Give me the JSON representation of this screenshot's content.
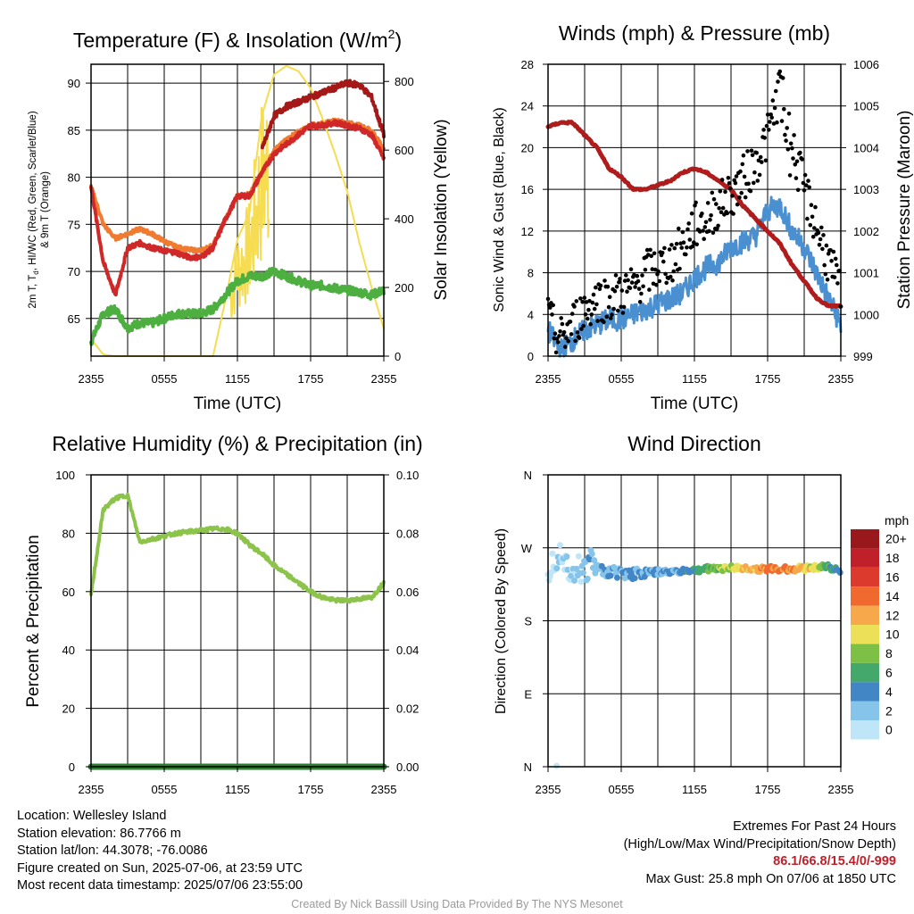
{
  "colors": {
    "red": "#d02828",
    "orange": "#f07a30",
    "green": "#4caf40",
    "maroon": "#b01c1c",
    "yellow": "#f5dc50",
    "blue": "#4a90d0",
    "black": "#000000",
    "rh": "#8cc34a",
    "precip": "#2e7d32",
    "grid": "#000000"
  },
  "x_ticks": [
    "2355",
    "0555",
    "1155",
    "1755",
    "2355"
  ],
  "time_label": "Time (UTC)",
  "charts": {
    "temp": {
      "title_main": "Temperature (F) & Insolation (W/m",
      "title_sup": "2",
      "title_end": ")",
      "ylabel_left_line1": "2m T, T",
      "ylabel_left_sub": "d",
      "ylabel_left_rest": ", HI/WC (Red, Green, Scarlet/Blue)",
      "ylabel_left_line2": "& 9m T (Orange)",
      "ylabel_right": "Solar Insolation (Yellow)",
      "yticks_left": [
        "65",
        "70",
        "75",
        "80",
        "85",
        "90"
      ],
      "yticks_right": [
        "0",
        "200",
        "400",
        "600",
        "800"
      ]
    },
    "wind": {
      "title": "Winds (mph) & Pressure (mb)",
      "ylabel_left": "Sonic Wind & Gust (Blue, Black)",
      "ylabel_right": "Station Pressure (Maroon)",
      "yticks_left": [
        "0",
        "4",
        "8",
        "12",
        "16",
        "20",
        "24",
        "28"
      ],
      "yticks_right": [
        "999",
        "1000",
        "1001",
        "1002",
        "1003",
        "1004",
        "1005",
        "1006"
      ]
    },
    "rh": {
      "title": "Relative Humidity (%) & Precipitation (in)",
      "ylabel_left": "Percent & Precipitation",
      "yticks_left": [
        "0",
        "20",
        "40",
        "60",
        "80",
        "100"
      ],
      "yticks_right": [
        "0.00",
        "0.02",
        "0.04",
        "0.06",
        "0.08",
        "0.10"
      ]
    },
    "dir": {
      "title": "Wind Direction",
      "ylabel_left": "Direction (Colored By Speed)",
      "yticks_left": [
        "N",
        "E",
        "S",
        "W",
        "N"
      ],
      "colorbar_title": "mph",
      "colorbar_labels": [
        "0",
        "2",
        "4",
        "6",
        "8",
        "10",
        "12",
        "14",
        "16",
        "18",
        "20+"
      ],
      "colorbar_colors": [
        "#bfe6f8",
        "#86c4ea",
        "#4286c6",
        "#44a86a",
        "#7cc046",
        "#ece058",
        "#f6a84a",
        "#f06a30",
        "#dc3a2c",
        "#c0202a",
        "#98181c"
      ]
    }
  },
  "chart_data": [
    {
      "type": "line",
      "title": "Temperature (F) & Insolation (W/m2)",
      "xlabel": "Time (UTC)",
      "ylabel": "2m T, Td, HI/WC (Red, Green, Scarlet/Blue) & 9m T (Orange)",
      "y2label": "Solar Insolation (Yellow)",
      "x_hours": [
        0,
        1,
        2,
        3,
        4,
        5,
        6,
        7,
        8,
        9,
        10,
        11,
        12,
        13,
        14,
        15,
        16,
        17,
        18,
        19,
        20,
        21,
        22,
        23,
        24
      ],
      "ylim": [
        61,
        92
      ],
      "y2lim": [
        0,
        850
      ],
      "series": [
        {
          "name": "2m T (Red)",
          "axis": "left",
          "color": "#d02828",
          "values": [
            79,
            71,
            67.5,
            72.5,
            73,
            72.5,
            72.2,
            72,
            71.5,
            71.5,
            72.5,
            75.5,
            78,
            78,
            80.5,
            82.5,
            83.5,
            84.5,
            85.5,
            85.5,
            85.8,
            85.5,
            85.2,
            84.5,
            82
          ]
        },
        {
          "name": "9m T (Orange)",
          "axis": "left",
          "color": "#f07a30",
          "values": [
            79,
            75,
            73.5,
            74,
            74.5,
            74,
            73.2,
            72.6,
            72.3,
            72.2,
            72.8,
            75.5,
            78,
            78.2,
            80.5,
            82.8,
            84,
            84.8,
            85.5,
            85.7,
            86,
            85.8,
            85.5,
            85,
            83
          ]
        },
        {
          "name": "Td (Green)",
          "axis": "left",
          "color": "#4caf40",
          "values": [
            62.5,
            65.5,
            66,
            64,
            64.5,
            64.5,
            65,
            65.5,
            65.5,
            65.5,
            66,
            67.5,
            69,
            69.5,
            69.5,
            70,
            69.5,
            69,
            68.5,
            68.5,
            68.2,
            68,
            67.8,
            67.5,
            68
          ]
        },
        {
          "name": "HI/WC (Scarlet/Blue)",
          "axis": "left",
          "color": "#a41818",
          "values": [
            null,
            null,
            null,
            null,
            null,
            null,
            null,
            null,
            null,
            null,
            null,
            null,
            null,
            null,
            83,
            86.5,
            87.5,
            88,
            88.5,
            89,
            89.5,
            90,
            89.8,
            88.5,
            84.5
          ]
        },
        {
          "name": "Solar Insolation (Yellow)",
          "axis": "right",
          "color": "#f5dc50",
          "values": [
            50,
            5,
            0,
            0,
            0,
            0,
            0,
            0,
            0,
            0,
            0,
            160,
            340,
            420,
            700,
            820,
            845,
            830,
            780,
            690,
            590,
            480,
            330,
            200,
            80
          ]
        }
      ]
    },
    {
      "type": "line",
      "title": "Winds (mph) & Pressure (mb)",
      "xlabel": "Time (UTC)",
      "ylabel": "Sonic Wind & Gust (Blue, Black)",
      "y2label": "Station Pressure (Maroon)",
      "x_hours": [
        0,
        1,
        2,
        3,
        4,
        5,
        6,
        7,
        8,
        9,
        10,
        11,
        12,
        13,
        14,
        15,
        16,
        17,
        18,
        19,
        20,
        21,
        22,
        23,
        24
      ],
      "ylim": [
        0,
        28
      ],
      "y2lim": [
        999,
        1006
      ],
      "series": [
        {
          "name": "Sonic Wind (Blue)",
          "axis": "left",
          "color": "#4a90d0",
          "values": [
            2.5,
            0.5,
            1.5,
            2.5,
            3,
            3.5,
            3.5,
            4,
            4.5,
            5,
            5.5,
            6,
            7.5,
            8.5,
            9,
            10.5,
            11,
            11.5,
            14,
            14.5,
            12,
            10.5,
            8,
            5.5,
            3
          ]
        },
        {
          "name": "Gust (Black)",
          "axis": "scatter",
          "color": "#000000",
          "values": [
            3.5,
            1.5,
            3,
            4.5,
            5.5,
            5.5,
            6,
            6.5,
            8,
            8.5,
            9,
            10.5,
            12.5,
            13,
            14.5,
            15.5,
            17,
            18.5,
            21,
            25.8,
            20,
            16,
            12.5,
            9,
            6
          ]
        },
        {
          "name": "Station Pressure (Maroon)",
          "axis": "right",
          "color": "#b01c1c",
          "values": [
            1004.5,
            1004.6,
            1004.6,
            1004.3,
            1004,
            1003.5,
            1003.3,
            1003,
            1003,
            1003.1,
            1003.2,
            1003.4,
            1003.5,
            1003.4,
            1003.2,
            1003,
            1002.6,
            1002.3,
            1002,
            1001.7,
            1001.2,
            1000.8,
            1000.4,
            1000.2,
            1000.2
          ]
        }
      ]
    },
    {
      "type": "line",
      "title": "Relative Humidity (%) & Precipitation (in)",
      "xlabel": "",
      "ylabel": "Percent & Precipitation",
      "x_hours": [
        0,
        1,
        2,
        3,
        4,
        5,
        6,
        7,
        8,
        9,
        10,
        11,
        12,
        13,
        14,
        15,
        16,
        17,
        18,
        19,
        20,
        21,
        22,
        23,
        24
      ],
      "ylim": [
        0,
        100
      ],
      "y2lim": [
        0,
        0.1
      ],
      "series": [
        {
          "name": "Relative Humidity",
          "axis": "left",
          "color": "#8cc34a",
          "values": [
            59,
            88,
            92,
            93,
            77,
            78,
            79,
            80,
            80.5,
            81,
            81.5,
            81.5,
            80,
            76,
            73,
            69,
            66,
            63,
            60,
            58,
            57,
            57,
            57.5,
            58,
            63
          ]
        },
        {
          "name": "Precipitation",
          "axis": "right",
          "color": "#2e7d32",
          "values": [
            0,
            0,
            0,
            0,
            0,
            0,
            0,
            0,
            0,
            0,
            0,
            0,
            0,
            0,
            0,
            0,
            0,
            0,
            0,
            0,
            0,
            0,
            0,
            0,
            0
          ]
        }
      ]
    },
    {
      "type": "scatter",
      "title": "Wind Direction",
      "xlabel": "",
      "ylabel": "Direction (Colored By Speed)",
      "x_hours": [
        0,
        0.5,
        1,
        1.5,
        2,
        2.5,
        3,
        3.5,
        4,
        5,
        6,
        7,
        8,
        9,
        10,
        11,
        12,
        13,
        14,
        15,
        16,
        17,
        18,
        19,
        20,
        21,
        22,
        23,
        24
      ],
      "y_degrees": [
        245,
        255,
        270,
        250,
        245,
        245,
        240,
        255,
        245,
        240,
        240,
        238,
        240,
        240,
        240,
        242,
        242,
        244,
        245,
        245,
        245,
        244,
        244,
        244,
        244,
        245,
        246,
        247,
        240
      ],
      "speeds_mph": [
        1,
        1,
        1.5,
        1,
        2,
        2,
        3,
        3,
        3,
        4,
        4,
        4,
        4,
        4,
        4,
        5,
        6,
        7,
        9,
        10,
        12,
        13,
        14,
        15,
        14,
        12,
        10,
        7,
        5
      ],
      "ylim": [
        0,
        360
      ],
      "yticks": [
        "N",
        "E",
        "S",
        "W",
        "N"
      ]
    }
  ],
  "footer": {
    "location": "Location: Wellesley Island",
    "elevation": "Station elevation: 86.7766 m",
    "latlon": "Station lat/lon: 44.3078; -76.0086",
    "created": "Figure created on Sun, 2025-07-06, at 23:59 UTC",
    "recent": "Most recent data timestamp: 2025/07/06 23:55:00",
    "extremes_title": "Extremes For Past 24 Hours",
    "extremes_legend": "(High/Low/Max Wind/Precipitation/Snow Depth)",
    "extremes_values": "86.1/66.8/15.4/0/-999",
    "max_gust": "Max Gust: 25.8 mph On 07/06 at 1850 UTC",
    "credit": "Created By Nick Bassill Using Data Provided By The NYS Mesonet"
  }
}
